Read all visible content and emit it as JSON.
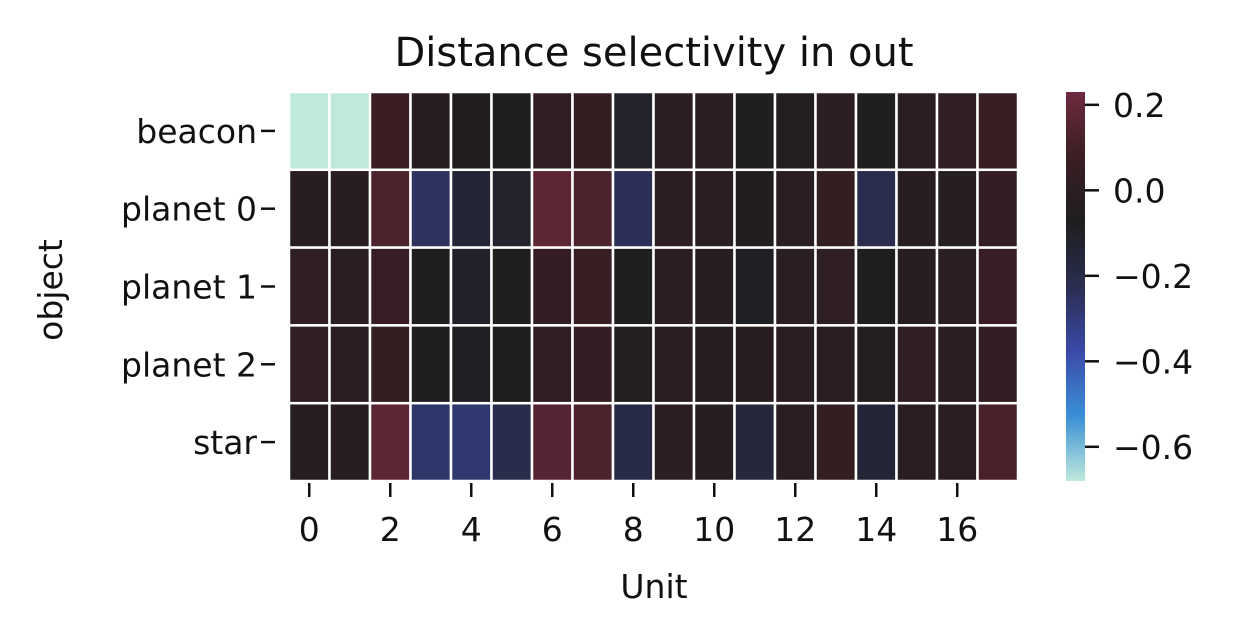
{
  "chart_data": {
    "type": "heatmap",
    "title": "Distance selectivity in out",
    "xlabel": "Unit",
    "ylabel": "object",
    "rows": [
      "beacon",
      "planet 0",
      "planet 1",
      "planet 2",
      "star"
    ],
    "x_ticks": [
      "0",
      "2",
      "4",
      "6",
      "8",
      "10",
      "12",
      "14",
      "16"
    ],
    "x_tick_values": [
      0,
      2,
      4,
      6,
      8,
      10,
      12,
      14,
      16
    ],
    "colorbar": {
      "vmin": -0.68,
      "vmax": 0.23,
      "ticks": [
        0.2,
        0.0,
        -0.2,
        -0.4,
        -0.6
      ],
      "tick_labels": [
        "0.2",
        "0.0",
        "−0.2",
        "−0.4",
        "−0.6"
      ]
    },
    "colormap": [
      "#bfe9dc",
      "#3a8fd6",
      "#3b4aa8",
      "#2a2d50",
      "#1e1e1e",
      "#3a1e24",
      "#6e2a3e"
    ],
    "values": [
      [
        -0.68,
        -0.68,
        0.08,
        -0.03,
        -0.05,
        -0.07,
        0.03,
        0.04,
        -0.12,
        0.0,
        -0.01,
        -0.06,
        -0.04,
        0.0,
        -0.06,
        -0.01,
        0.02,
        0.06
      ],
      [
        -0.02,
        -0.02,
        0.13,
        -0.25,
        -0.14,
        -0.12,
        0.18,
        0.13,
        -0.24,
        0.01,
        -0.01,
        -0.05,
        -0.01,
        0.04,
        -0.22,
        -0.02,
        -0.03,
        0.05
      ],
      [
        0.02,
        -0.01,
        0.07,
        -0.08,
        -0.11,
        -0.08,
        0.05,
        0.06,
        -0.08,
        0.0,
        -0.02,
        -0.09,
        -0.01,
        0.02,
        -0.07,
        -0.02,
        -0.01,
        0.07
      ],
      [
        0.02,
        -0.01,
        0.04,
        -0.06,
        -0.09,
        -0.07,
        0.03,
        0.05,
        -0.04,
        -0.01,
        -0.03,
        -0.02,
        -0.01,
        -0.01,
        -0.04,
        0.03,
        0.0,
        0.05
      ],
      [
        -0.03,
        -0.02,
        0.18,
        -0.27,
        -0.28,
        -0.21,
        0.16,
        0.13,
        -0.2,
        0.0,
        -0.02,
        -0.16,
        -0.01,
        0.04,
        -0.15,
        -0.01,
        -0.01,
        0.12
      ]
    ]
  }
}
